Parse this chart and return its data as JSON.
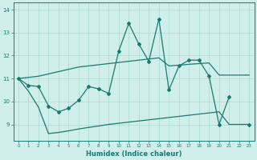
{
  "xlabel": "Humidex (Indice chaleur)",
  "x": [
    0,
    1,
    2,
    3,
    4,
    5,
    6,
    7,
    8,
    9,
    10,
    11,
    12,
    13,
    14,
    15,
    16,
    17,
    18,
    19,
    20,
    21,
    22,
    23
  ],
  "main_line": [
    11.0,
    10.7,
    10.65,
    9.8,
    9.55,
    9.7,
    10.05,
    10.65,
    10.55,
    10.35,
    12.2,
    13.4,
    12.5,
    11.75,
    13.6,
    10.5,
    11.55,
    11.8,
    11.8,
    11.1,
    9.0,
    10.2,
    null,
    9.0
  ],
  "upper_line": [
    11.0,
    11.05,
    11.1,
    11.2,
    11.3,
    11.4,
    11.5,
    11.55,
    11.6,
    11.65,
    11.7,
    11.75,
    11.8,
    11.85,
    11.9,
    11.55,
    11.58,
    11.62,
    11.65,
    11.68,
    11.15,
    11.15,
    11.15,
    11.15
  ],
  "lower_line": [
    11.0,
    10.45,
    9.75,
    8.6,
    8.65,
    8.72,
    8.8,
    8.87,
    8.93,
    9.0,
    9.05,
    9.1,
    9.15,
    9.2,
    9.25,
    9.3,
    9.35,
    9.4,
    9.45,
    9.5,
    9.55,
    9.0,
    9.0,
    9.0
  ],
  "line_color": "#1a7a6e",
  "bg_color": "#d0eeea",
  "grid_color": "#aad8d2",
  "ylim": [
    8.3,
    14.3
  ],
  "xlim": [
    -0.5,
    23.5
  ],
  "yticks": [
    9,
    10,
    11,
    12,
    13,
    14
  ],
  "xticks": [
    0,
    1,
    2,
    3,
    4,
    5,
    6,
    7,
    8,
    9,
    10,
    11,
    12,
    13,
    14,
    15,
    16,
    17,
    18,
    19,
    20,
    21,
    22,
    23
  ]
}
